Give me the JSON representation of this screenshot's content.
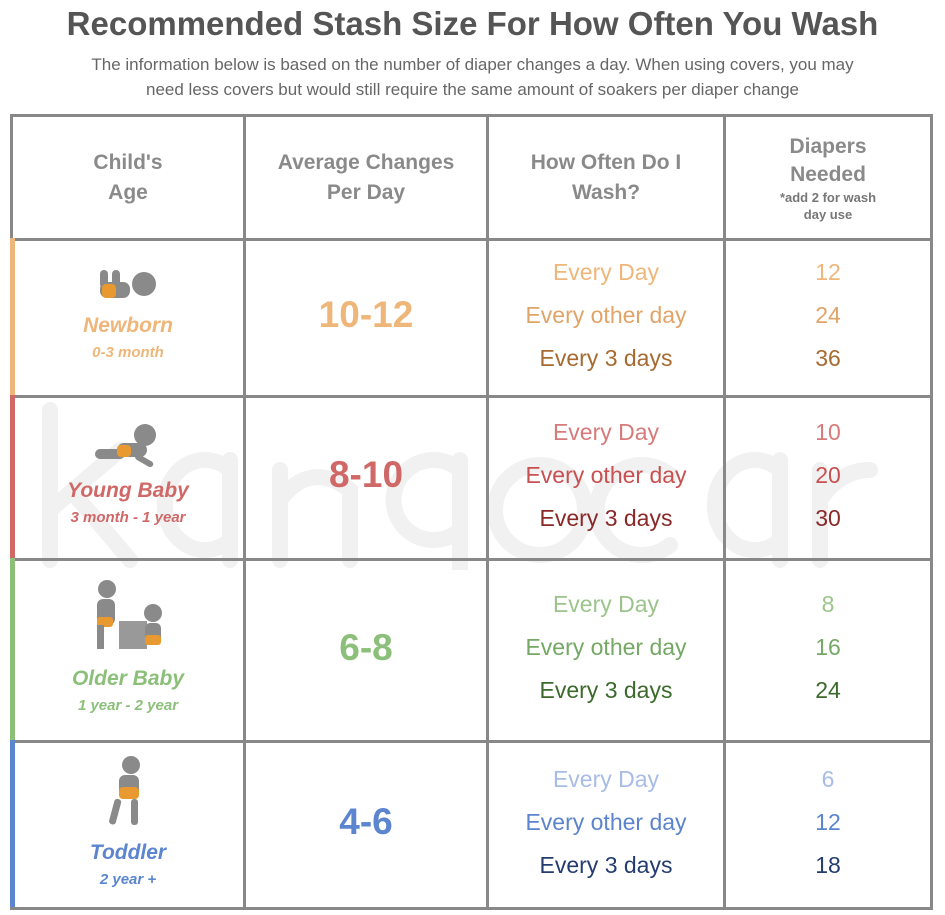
{
  "title": "Recommended Stash Size For How Often You Wash",
  "subtitle_line1": "The information below is based on the number of diaper changes a day. When using covers, you may",
  "subtitle_line2": "need less covers but would still require the same amount of soakers per diaper change",
  "watermark": "kangacare",
  "headers": {
    "age": [
      "Child's",
      "Age"
    ],
    "changes": [
      "Average Changes",
      "Per Day"
    ],
    "wash": [
      "How Often Do I",
      "Wash?"
    ],
    "needed": [
      "Diapers",
      "Needed"
    ],
    "note": [
      "*add 2 for wash",
      "day use"
    ]
  },
  "rows": [
    {
      "age": "Newborn",
      "range": "0-3 month",
      "changes": "10-12",
      "freq": [
        "Every Day",
        "Every other day",
        "Every 3 days"
      ],
      "counts": [
        "12",
        "24",
        "36"
      ],
      "colors": [
        "#efb67a",
        "#e0a468",
        "#a76a30"
      ],
      "accent": "#efb67a"
    },
    {
      "age": "Young Baby",
      "range": "3 month - 1 year",
      "changes": "8-10",
      "freq": [
        "Every Day",
        "Every other day",
        "Every 3 days"
      ],
      "counts": [
        "10",
        "20",
        "30"
      ],
      "colors": [
        "#d87a7a",
        "#c85050",
        "#8a2828"
      ],
      "accent": "#d06868"
    },
    {
      "age": "Older Baby",
      "range": "1 year - 2 year",
      "changes": "6-8",
      "freq": [
        "Every Day",
        "Every other day",
        "Every 3 days"
      ],
      "counts": [
        "8",
        "16",
        "24"
      ],
      "colors": [
        "#9cc48c",
        "#74a864",
        "#3c6a2c"
      ],
      "accent": "#8cbf7a"
    },
    {
      "age": "Toddler",
      "range": "2 year +",
      "changes": "4-6",
      "freq": [
        "Every Day",
        "Every other day",
        "Every 3 days"
      ],
      "counts": [
        "6",
        "12",
        "18"
      ],
      "colors": [
        "#a8bce8",
        "#5c84cc",
        "#243c70"
      ],
      "accent": "#5b86cf"
    }
  ]
}
